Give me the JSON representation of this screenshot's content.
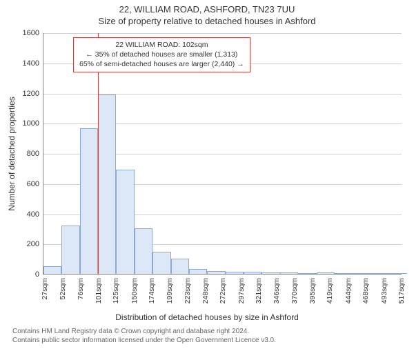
{
  "titles": {
    "main": "22, WILLIAM ROAD, ASHFORD, TN23 7UU",
    "sub": "Size of property relative to detached houses in Ashford"
  },
  "axes": {
    "ylabel": "Number of detached properties",
    "xlabel": "Distribution of detached houses by size in Ashford",
    "ymax": 1600,
    "ytick_step": 200,
    "yticks": [
      0,
      200,
      400,
      600,
      800,
      1000,
      1200,
      1400,
      1600
    ],
    "xmin_sqm": 27,
    "xmax_sqm": 520,
    "xticks_sqm": [
      27,
      52,
      76,
      101,
      125,
      150,
      174,
      199,
      223,
      248,
      272,
      297,
      321,
      346,
      370,
      395,
      419,
      444,
      468,
      493,
      517
    ]
  },
  "chart": {
    "type": "histogram",
    "bar_fill": "#dce8f8",
    "bar_border": "#8aa8d0",
    "grid_color": "#d0d0d0",
    "axis_color": "#808080",
    "background_color": "#ffffff",
    "bin_start_sqm": 27,
    "bin_width_sqm": 25,
    "bin_counts": [
      50,
      320,
      965,
      1190,
      690,
      300,
      145,
      100,
      30,
      20,
      15,
      12,
      10,
      10,
      5,
      8,
      5,
      3,
      3,
      2
    ],
    "marker": {
      "sqm": 102,
      "color": "#cc4444"
    }
  },
  "info_box": {
    "border_color": "#cc4444",
    "line1": "22 WILLIAM ROAD: 102sqm",
    "line2": "← 35% of detached houses are smaller (1,313)",
    "line3": "65% of semi-detached houses are larger (2,440) →"
  },
  "footer": {
    "line1": "Contains HM Land Registry data © Crown copyright and database right 2024.",
    "line2": "Contains public sector information licensed under the Open Government Licence v3.0."
  },
  "typography": {
    "title_fontsize": 13,
    "axis_label_fontsize": 12,
    "tick_fontsize": 11,
    "infobox_fontsize": 10.5,
    "footer_fontsize": 10
  }
}
